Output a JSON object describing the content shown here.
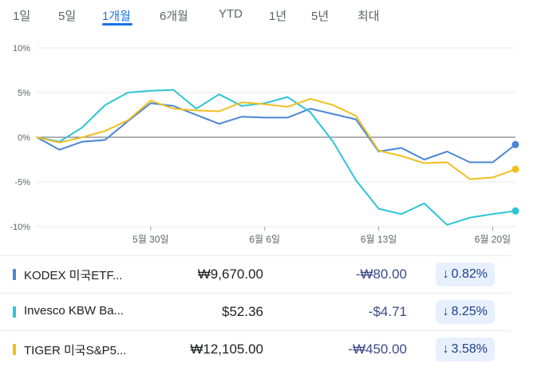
{
  "tabs": [
    {
      "label": "1일"
    },
    {
      "label": "5일"
    },
    {
      "label": "1개월",
      "active": true
    },
    {
      "label": "6개월"
    },
    {
      "label": "YTD"
    },
    {
      "label": "1년"
    },
    {
      "label": "5년"
    },
    {
      "label": "최대"
    }
  ],
  "chart_data": {
    "type": "line",
    "y_ticks": [
      "10%",
      "5%",
      "0%",
      "-5%",
      "-10%"
    ],
    "x_ticks": [
      "5월 30일",
      "6월 6일",
      "6월 13일",
      "6월 20일"
    ],
    "ylim": [
      -10,
      10
    ],
    "grid": true,
    "series": [
      {
        "name": "KODEX 미국ETF...",
        "color": "#4a86d4",
        "values": [
          0,
          -1.4,
          -0.5,
          -0.3,
          1.8,
          3.8,
          3.5,
          2.5,
          1.5,
          2.3,
          2.2,
          2.2,
          3.2,
          2.6,
          2.0,
          -1.6,
          -1.2,
          -2.5,
          -1.6,
          -2.8,
          -2.8,
          -0.82
        ]
      },
      {
        "name": "Invesco KBW Ba...",
        "color": "#2ec4d6",
        "values": [
          0,
          -0.5,
          1.1,
          3.6,
          5.0,
          5.2,
          5.3,
          3.2,
          4.8,
          3.5,
          3.8,
          4.5,
          2.8,
          -0.5,
          -4.8,
          -8.0,
          -8.6,
          -7.4,
          -9.8,
          -9.0,
          -8.6,
          -8.25
        ]
      },
      {
        "name": "TIGER 미국S&P5...",
        "color": "#f0c020",
        "values": [
          0,
          -0.6,
          0,
          0.7,
          1.9,
          4.1,
          3.2,
          3.0,
          2.9,
          3.9,
          3.7,
          3.4,
          4.3,
          3.6,
          2.4,
          -1.5,
          -2.1,
          -2.9,
          -2.8,
          -4.7,
          -4.5,
          -3.58
        ]
      }
    ]
  },
  "rows": [
    {
      "name": "KODEX 미국ETF...",
      "price": "₩9,670.00",
      "change": "-₩80.00",
      "pct": "0.82%",
      "arrow": "↓",
      "color": "#4a86d4"
    },
    {
      "name": "Invesco KBW Ba...",
      "price": "$52.36",
      "change": "-$4.71",
      "pct": "8.25%",
      "arrow": "↓",
      "color": "#2ec4d6"
    },
    {
      "name": "TIGER 미국S&P5...",
      "price": "₩12,105.00",
      "change": "-₩450.00",
      "pct": "3.58%",
      "arrow": "↓",
      "color": "#f0c020"
    }
  ]
}
